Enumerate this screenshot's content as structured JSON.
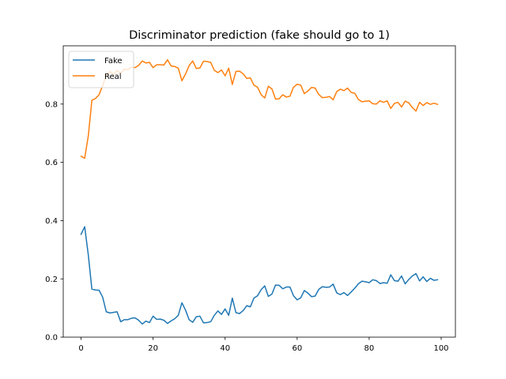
{
  "chart_data": {
    "type": "line",
    "title": "Discriminator prediction (fake should go to 1)",
    "xlabel": "",
    "ylabel": "",
    "xlim": [
      -4.95,
      103.95
    ],
    "ylim": [
      0.0,
      1.0
    ],
    "xticks": [
      0,
      20,
      40,
      60,
      80,
      100
    ],
    "yticks": [
      0.0,
      0.2,
      0.4,
      0.6,
      0.8
    ],
    "grid": false,
    "legend_position": "top-left",
    "series": [
      {
        "name": "Fake",
        "color": "#1f77b4",
        "values": [
          0.353,
          0.379,
          0.283,
          0.165,
          0.162,
          0.161,
          0.137,
          0.087,
          0.083,
          0.085,
          0.087,
          0.053,
          0.06,
          0.06,
          0.065,
          0.066,
          0.058,
          0.045,
          0.055,
          0.05,
          0.072,
          0.061,
          0.062,
          0.058,
          0.047,
          0.056,
          0.063,
          0.075,
          0.118,
          0.093,
          0.06,
          0.051,
          0.07,
          0.072,
          0.049,
          0.05,
          0.053,
          0.075,
          0.09,
          0.078,
          0.097,
          0.075,
          0.134,
          0.084,
          0.081,
          0.091,
          0.108,
          0.104,
          0.134,
          0.142,
          0.163,
          0.176,
          0.14,
          0.148,
          0.179,
          0.178,
          0.166,
          0.172,
          0.172,
          0.142,
          0.128,
          0.135,
          0.16,
          0.151,
          0.139,
          0.141,
          0.164,
          0.173,
          0.171,
          0.172,
          0.182,
          0.152,
          0.146,
          0.153,
          0.143,
          0.155,
          0.168,
          0.183,
          0.192,
          0.19,
          0.187,
          0.197,
          0.194,
          0.184,
          0.187,
          0.185,
          0.214,
          0.194,
          0.192,
          0.21,
          0.183,
          0.198,
          0.21,
          0.218,
          0.193,
          0.207,
          0.191,
          0.202,
          0.195,
          0.197
        ]
      },
      {
        "name": "Real",
        "color": "#ff7f0e",
        "values": [
          0.621,
          0.614,
          0.69,
          0.813,
          0.819,
          0.832,
          0.864,
          0.898,
          0.912,
          0.902,
          0.915,
          0.906,
          0.92,
          0.918,
          0.927,
          0.925,
          0.933,
          0.948,
          0.941,
          0.943,
          0.925,
          0.935,
          0.935,
          0.934,
          0.952,
          0.931,
          0.929,
          0.923,
          0.88,
          0.903,
          0.932,
          0.948,
          0.922,
          0.924,
          0.947,
          0.946,
          0.943,
          0.916,
          0.908,
          0.917,
          0.897,
          0.923,
          0.867,
          0.912,
          0.913,
          0.904,
          0.888,
          0.89,
          0.865,
          0.858,
          0.832,
          0.821,
          0.861,
          0.852,
          0.817,
          0.818,
          0.832,
          0.824,
          0.827,
          0.858,
          0.868,
          0.865,
          0.836,
          0.845,
          0.857,
          0.855,
          0.833,
          0.822,
          0.823,
          0.826,
          0.815,
          0.843,
          0.851,
          0.846,
          0.855,
          0.84,
          0.837,
          0.816,
          0.808,
          0.81,
          0.811,
          0.801,
          0.8,
          0.811,
          0.806,
          0.811,
          0.785,
          0.802,
          0.806,
          0.79,
          0.81,
          0.804,
          0.788,
          0.776,
          0.806,
          0.795,
          0.805,
          0.799,
          0.803,
          0.799
        ]
      }
    ]
  }
}
